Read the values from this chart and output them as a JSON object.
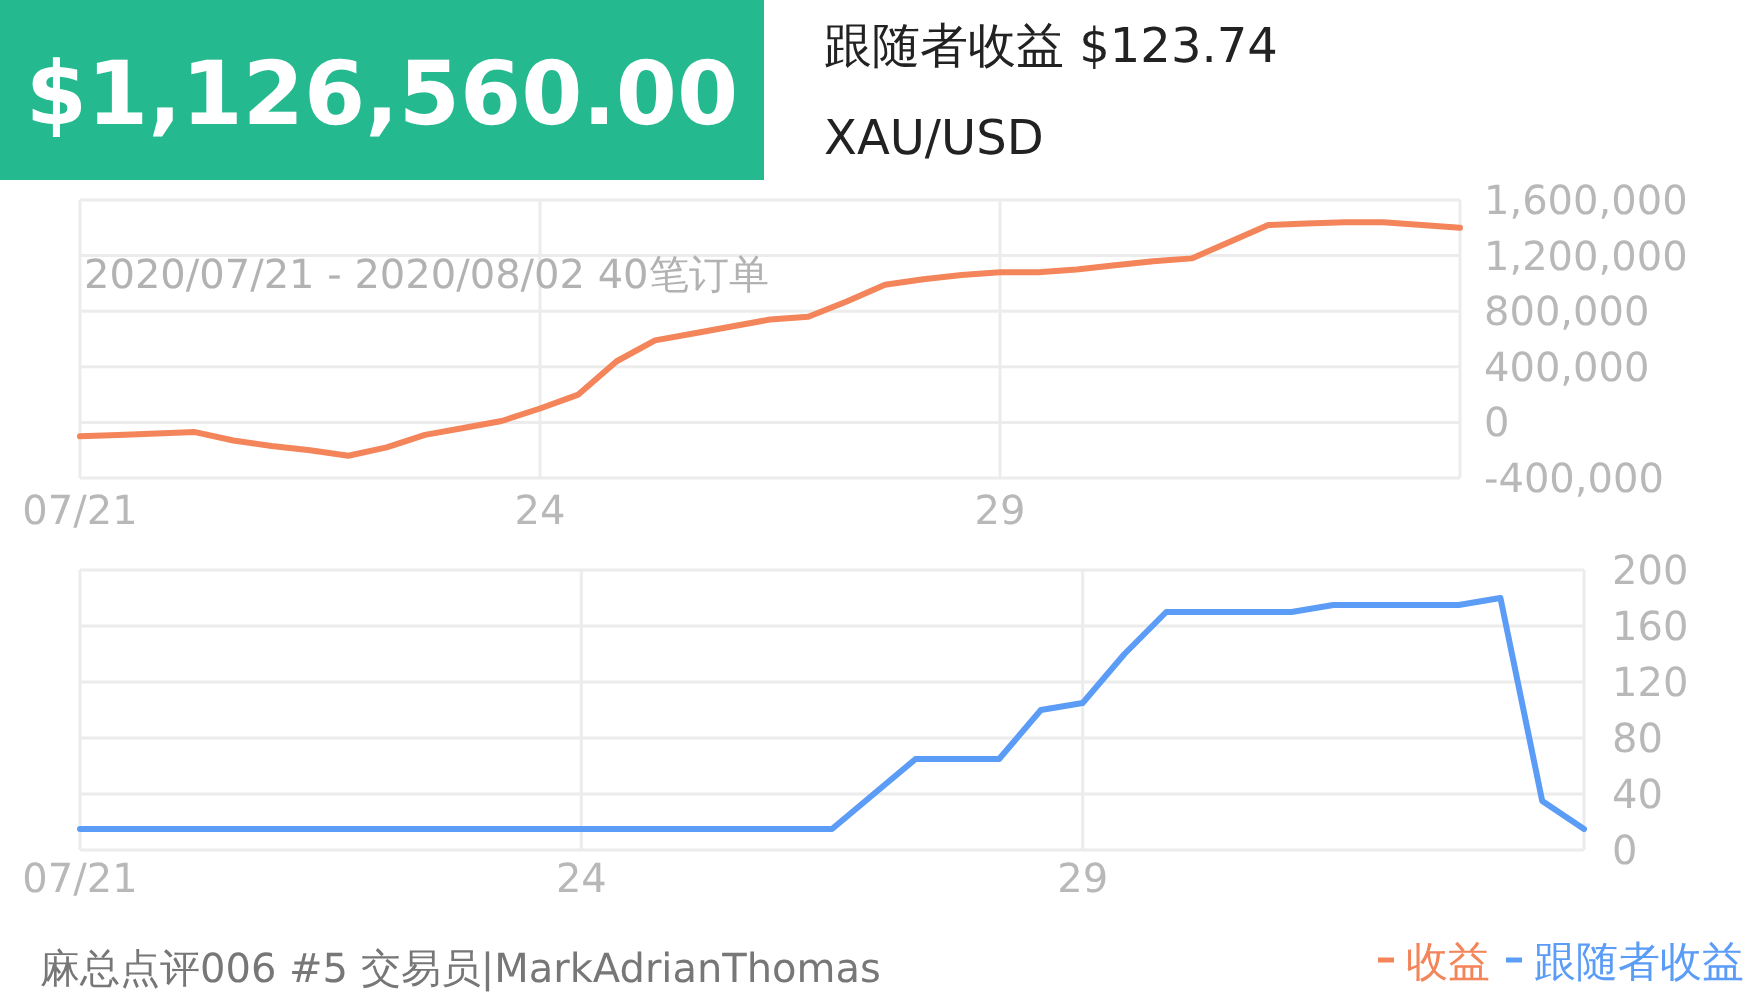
{
  "chart_data": [
    {
      "type": "line",
      "title": "$1,126,560.00",
      "subtitle": "跟随者收益 $123.74",
      "annotations": [
        "XAU/USD",
        "2020/07/21 - 2020/08/02 40笔订单"
      ],
      "categories": [
        "07/21",
        null,
        null,
        null,
        null,
        null,
        null,
        null,
        null,
        null,
        null,
        null,
        "24",
        null,
        null,
        null,
        null,
        null,
        null,
        null,
        null,
        null,
        null,
        null,
        "29",
        null,
        null,
        null,
        null,
        null,
        null,
        null,
        null,
        null,
        null,
        null,
        null
      ],
      "series": [
        {
          "name": "收益",
          "color": "#f4845a",
          "values": [
            -100000,
            -90000,
            -80000,
            -70000,
            -130000,
            -170000,
            -200000,
            -240000,
            -180000,
            -90000,
            -40000,
            10000,
            100000,
            200000,
            440000,
            590000,
            640000,
            690000,
            740000,
            760000,
            870000,
            990000,
            1030000,
            1060000,
            1080000,
            1080000,
            1100000,
            1130000,
            1160000,
            1180000,
            1300000,
            1420000,
            1430000,
            1440000,
            1440000,
            1420000,
            1400000
          ]
        }
      ],
      "ylim": [
        -400000,
        1600000
      ],
      "yticks": [
        {
          "value": -400000,
          "label": "-400,000"
        },
        {
          "value": 0,
          "label": "0"
        },
        {
          "value": 400000,
          "label": "400,000"
        },
        {
          "value": 800000,
          "label": "800,000"
        },
        {
          "value": 1200000,
          "label": "1,200,000"
        },
        {
          "value": 1600000,
          "label": "1,600,000"
        }
      ],
      "grid": true,
      "legend": "bottom right",
      "marker": "none",
      "line_style": "solid"
    },
    {
      "type": "line",
      "annotations": [
        "麻总点评006 #5 交易员|MarkAdrianThomas"
      ],
      "categories": [
        "07/21",
        null,
        null,
        null,
        null,
        null,
        null,
        null,
        null,
        null,
        null,
        null,
        "24",
        null,
        null,
        null,
        null,
        null,
        null,
        null,
        null,
        null,
        null,
        null,
        "29",
        null,
        null,
        null,
        null,
        null,
        null,
        null,
        null,
        null,
        null,
        null,
        null
      ],
      "series": [
        {
          "name": "跟随者收益",
          "color": "#5b9cf6",
          "values": [
            15,
            15,
            15,
            15,
            15,
            15,
            15,
            15,
            15,
            15,
            15,
            15,
            15,
            15,
            15,
            15,
            15,
            15,
            15,
            40,
            65,
            65,
            65,
            100,
            105,
            140,
            170,
            170,
            170,
            170,
            175,
            175,
            175,
            175,
            180,
            35,
            15
          ]
        }
      ],
      "ylim": [
        0,
        200
      ],
      "yticks": [
        0,
        40,
        80,
        120,
        160,
        200
      ],
      "grid": true,
      "legend": "bottom right",
      "marker": "none",
      "line_style": "solid"
    }
  ]
}
